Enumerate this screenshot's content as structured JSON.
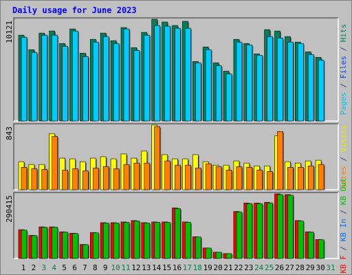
{
  "title": "Daily usage for June 2023",
  "chart_data": [
    {
      "type": "bar",
      "ylim": [
        0,
        10121
      ],
      "yticks": [
        10121
      ],
      "legend": [
        {
          "label": "Pages",
          "color": "#00c8e8"
        },
        {
          "label": "Files",
          "color": "#0040ff"
        },
        {
          "label": "Hits",
          "color": "#008060"
        }
      ],
      "legend_separator": " / ",
      "series": [
        {
          "color": "#00805c",
          "values": [
            8537,
            7092,
            8744,
            8951,
            7711,
            9157,
            6747,
            8124,
            8744,
            7987,
            9295,
            7298,
            8813,
            10121,
            9846,
            9501,
            9914,
            5921,
            7367,
            5783,
            4957,
            8124,
            7711,
            6679,
            9088,
            8951,
            8400,
            7849,
            6885,
            6334,
            null
          ]
        },
        {
          "color": "#00ccff",
          "values": [
            8331,
            6816,
            8537,
            8537,
            7436,
            8951,
            6403,
            7849,
            8400,
            7711,
            9157,
            7023,
            8537,
            9501,
            9432,
            9226,
            9226,
            5783,
            7092,
            5508,
            4682,
            7849,
            7574,
            6541,
            8400,
            8262,
            7849,
            7711,
            6610,
            6059,
            null
          ]
        }
      ]
    },
    {
      "type": "bar",
      "ylim": [
        0,
        843
      ],
      "yticks": [
        843
      ],
      "legend": [
        {
          "label": "Sites",
          "color": "#ff8000"
        },
        {
          "label": "Visits",
          "color": "#e8e800"
        }
      ],
      "legend_separator": " / ",
      "series": [
        {
          "color": "#ffff00",
          "values": [
            366,
            330,
            330,
            733,
            412,
            403,
            366,
            412,
            431,
            403,
            467,
            412,
            504,
            843,
            458,
            403,
            403,
            458,
            366,
            321,
            321,
            376,
            348,
            311,
            311,
            705,
            366,
            348,
            376,
            385,
            null
          ]
        },
        {
          "color": "#ff8000",
          "values": [
            293,
            275,
            266,
            696,
            256,
            275,
            247,
            284,
            302,
            275,
            330,
            348,
            348,
            824,
            376,
            321,
            321,
            284,
            339,
            302,
            256,
            302,
            293,
            256,
            238,
            760,
            293,
            293,
            311,
            330,
            null
          ]
        }
      ]
    },
    {
      "type": "bar",
      "ylim": [
        0,
        290415
      ],
      "yticks": [
        290415
      ],
      "legend": [
        {
          "label": "KB F",
          "color": "#ff0000"
        },
        {
          "label": "KB In",
          "color": "#0070ff"
        },
        {
          "label": "KB Out",
          "color": "#00c000"
        }
      ],
      "legend_separator": " / ",
      "categories": [
        "1",
        "2",
        "3",
        "4",
        "5",
        "6",
        "7",
        "8",
        "9",
        "10",
        "11",
        "12",
        "13",
        "14",
        "15",
        "16",
        "17",
        "18",
        "19",
        "20",
        "21",
        "22",
        "23",
        "24",
        "25",
        "26",
        "27",
        "28",
        "29",
        "30",
        "31"
      ],
      "category_colors": [
        "#000000",
        "#000000",
        "#008040",
        "#008040",
        "#000000",
        "#000000",
        "#000000",
        "#000000",
        "#000000",
        "#008040",
        "#008040",
        "#000000",
        "#000000",
        "#000000",
        "#000000",
        "#000000",
        "#008040",
        "#008040",
        "#000000",
        "#000000",
        "#000000",
        "#000000",
        "#000000",
        "#008040",
        "#008040",
        "#000000",
        "#000000",
        "#000000",
        "#000000",
        "#000000",
        "#008040"
      ],
      "series": [
        {
          "color": "#ff0000",
          "values": [
            129437,
            104181,
            142065,
            142065,
            119966,
            113652,
            63140,
            116809,
            161007,
            161007,
            164164,
            170478,
            161007,
            164164,
            164164,
            227304,
            164164,
            97867,
            47355,
            28413,
            22099,
            211519,
            249403,
            249403,
            252560,
            290415,
            287287,
            170478,
            119966,
            85239,
            null
          ]
        },
        {
          "color": "#00c000",
          "values": [
            127500,
            102900,
            140300,
            140600,
            118700,
            112300,
            62300,
            115400,
            159200,
            159600,
            162500,
            168900,
            159300,
            162700,
            162400,
            224800,
            162600,
            96700,
            46800,
            28000,
            21800,
            209400,
            246900,
            246800,
            250000,
            287400,
            284400,
            168700,
            118600,
            84300,
            null
          ]
        }
      ]
    }
  ]
}
